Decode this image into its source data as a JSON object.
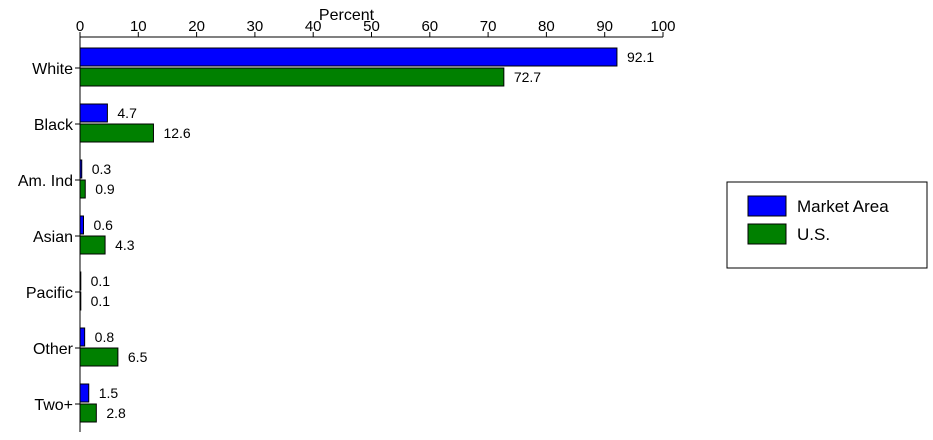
{
  "chart_data": {
    "type": "bar",
    "orientation": "horizontal",
    "title": "",
    "xlabel": "Percent",
    "ylabel": "",
    "xlim": [
      0,
      100
    ],
    "x_ticks": [
      0,
      10,
      20,
      30,
      40,
      50,
      60,
      70,
      80,
      90,
      100
    ],
    "x_axis_position": "top",
    "grid": false,
    "legend_position": "right",
    "categories": [
      "White",
      "Black",
      "Am. Ind",
      "Asian",
      "Pacific",
      "Other",
      "Two+"
    ],
    "series": [
      {
        "name": "Market Area",
        "color": "#0000FF",
        "values": [
          92.1,
          4.7,
          0.3,
          0.6,
          0.1,
          0.8,
          1.5
        ],
        "labels": [
          "92.1",
          "4.7",
          "0.3",
          "0.6",
          "0.1",
          "0.8",
          "1.5"
        ]
      },
      {
        "name": "U.S.",
        "color": "#008000",
        "values": [
          72.7,
          12.6,
          0.9,
          4.3,
          0.1,
          6.5,
          2.8
        ],
        "labels": [
          "72.7",
          "12.6",
          "0.9",
          "4.3",
          "0.1",
          "6.5",
          "2.8"
        ]
      }
    ]
  }
}
